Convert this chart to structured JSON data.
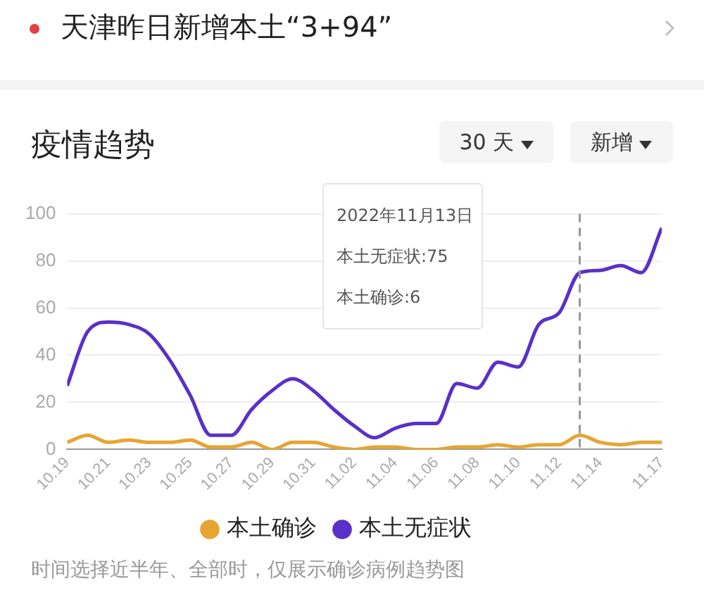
{
  "chart_data": {
    "type": "line",
    "title": "疫情趋势",
    "x": [
      "2022-10-19",
      "2022-10-20",
      "2022-10-21",
      "2022-10-22",
      "2022-10-23",
      "2022-10-24",
      "2022-10-25",
      "2022-10-26",
      "2022-10-27",
      "2022-10-28",
      "2022-10-29",
      "2022-10-30",
      "2022-10-31",
      "2022-11-01",
      "2022-11-02",
      "2022-11-03",
      "2022-11-04",
      "2022-11-05",
      "2022-11-06",
      "2022-11-07",
      "2022-11-08",
      "2022-11-09",
      "2022-11-10",
      "2022-11-11",
      "2022-11-12",
      "2022-11-13",
      "2022-11-14",
      "2022-11-15",
      "2022-11-16",
      "2022-11-17"
    ],
    "series": [
      {
        "name": "本土确诊",
        "color": "#e6a532",
        "values": [
          3,
          6,
          3,
          4,
          3,
          3,
          4,
          1,
          1,
          3,
          0,
          3,
          3,
          1,
          0,
          1,
          1,
          0,
          0,
          1,
          1,
          2,
          1,
          2,
          2,
          6,
          3,
          2,
          3,
          3
        ]
      },
      {
        "name": "本土无症状",
        "color": "#5a30c8",
        "values": [
          27,
          50,
          54,
          53,
          49,
          38,
          23,
          6,
          6,
          17,
          25,
          30,
          25,
          17,
          10,
          5,
          9,
          11,
          11,
          28,
          26,
          37,
          35,
          53,
          58,
          75,
          76,
          78,
          75,
          94
        ]
      }
    ],
    "xlim": [
      "2022-10-19",
      "2022-11-17"
    ],
    "xticks": [
      {
        "value": "2022-10-19",
        "label": "10.19"
      },
      {
        "value": "2022-10-21",
        "label": "10.21"
      },
      {
        "value": "2022-10-23",
        "label": "10.23"
      },
      {
        "value": "2022-10-25",
        "label": "10.25"
      },
      {
        "value": "2022-10-27",
        "label": "10.27"
      },
      {
        "value": "2022-10-29",
        "label": "10.29"
      },
      {
        "value": "2022-10-31",
        "label": "10.31"
      },
      {
        "value": "2022-11-02",
        "label": "11.02"
      },
      {
        "value": "2022-11-04",
        "label": "11.04"
      },
      {
        "value": "2022-11-06",
        "label": "11.06"
      },
      {
        "value": "2022-11-08",
        "label": "11.08"
      },
      {
        "value": "2022-11-10",
        "label": "11.10"
      },
      {
        "value": "2022-11-12",
        "label": "11.12"
      },
      {
        "value": "2022-11-14",
        "label": "11.14"
      },
      {
        "value": "2022-11-17",
        "label": "11.17"
      }
    ],
    "ylim": [
      0,
      100
    ],
    "yticks": [
      0,
      20,
      40,
      60,
      80,
      100
    ],
    "grid": "y",
    "legend": "bottom",
    "marker": "none",
    "line_style": "solid",
    "ref_lines": [
      {
        "axis": "x",
        "value": "2022-11-13",
        "color": "#999999",
        "line_style": "dashed"
      }
    ],
    "annotations": [
      "天津昨日新增本土“3+94”",
      "30 天",
      "新增",
      "2022年11月13日",
      "时间选择近半年、全部时，仅展示确诊病例趋势图",
      "本土无症状:75",
      "本土确诊:6"
    ]
  }
}
